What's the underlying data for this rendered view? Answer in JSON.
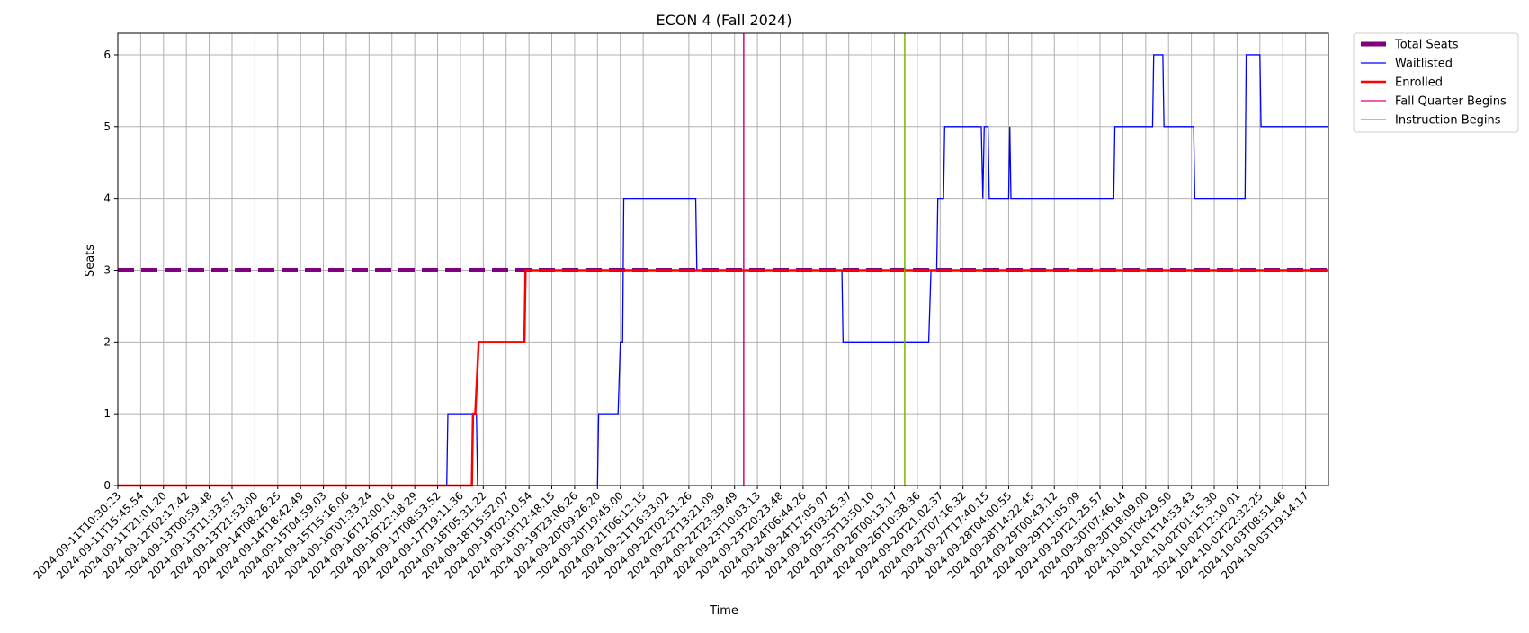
{
  "chart_data": {
    "type": "line",
    "title": "ECON 4 (Fall 2024)",
    "xlabel": "Time",
    "ylabel": "Seats",
    "ylim": [
      0,
      6.3
    ],
    "yticks": [
      0,
      1,
      2,
      3,
      4,
      5,
      6
    ],
    "grid": true,
    "legend_position": "outside-top-right",
    "x_ticks": [
      "2024-09-11T10:30:23",
      "2024-09-11T15:45:54",
      "2024-09-11T21:01:20",
      "2024-09-12T02:17:42",
      "2024-09-13T00:59:48",
      "2024-09-13T11:33:57",
      "2024-09-13T21:53:00",
      "2024-09-14T08:26:25",
      "2024-09-14T18:42:49",
      "2024-09-15T04:59:03",
      "2024-09-15T15:16:06",
      "2024-09-16T01:33:24",
      "2024-09-16T12:00:16",
      "2024-09-16T22:18:29",
      "2024-09-17T08:53:52",
      "2024-09-17T19:11:36",
      "2024-09-18T05:31:22",
      "2024-09-18T15:52:07",
      "2024-09-19T02:10:54",
      "2024-09-19T12:48:15",
      "2024-09-19T23:06:26",
      "2024-09-20T09:26:20",
      "2024-09-20T19:45:00",
      "2024-09-21T06:12:15",
      "2024-09-21T16:33:02",
      "2024-09-22T02:51:26",
      "2024-09-22T13:21:09",
      "2024-09-22T23:39:49",
      "2024-09-23T10:03:13",
      "2024-09-23T20:23:48",
      "2024-09-24T06:44:26",
      "2024-09-24T17:05:07",
      "2024-09-25T03:25:37",
      "2024-09-25T13:50:10",
      "2024-09-26T00:13:17",
      "2024-09-26T10:38:36",
      "2024-09-26T21:02:37",
      "2024-09-27T07:16:32",
      "2024-09-27T17:40:15",
      "2024-09-28T04:00:55",
      "2024-09-28T14:22:45",
      "2024-09-29T00:43:12",
      "2024-09-29T11:05:09",
      "2024-09-29T21:25:57",
      "2024-09-30T07:46:14",
      "2024-09-30T18:09:00",
      "2024-10-01T04:29:50",
      "2024-10-01T14:53:43",
      "2024-10-02T01:15:30",
      "2024-10-02T12:10:01",
      "2024-10-02T22:32:25",
      "2024-10-03T08:51:46",
      "2024-10-03T19:14:17"
    ],
    "series": [
      {
        "name": "Total Seats",
        "color": "#800080",
        "style": "dashed",
        "points": [
          [
            0,
            3
          ],
          [
            53,
            3
          ]
        ]
      },
      {
        "name": "Waitlisted",
        "color": "#0000ff",
        "style": "solid",
        "points": [
          [
            0,
            0
          ],
          [
            14.4,
            0
          ],
          [
            14.45,
            1
          ],
          [
            15.7,
            1
          ],
          [
            15.75,
            0
          ],
          [
            21.0,
            0
          ],
          [
            21.05,
            1
          ],
          [
            21.9,
            1
          ],
          [
            22.0,
            2
          ],
          [
            22.1,
            2
          ],
          [
            22.15,
            4
          ],
          [
            25.3,
            4
          ],
          [
            25.35,
            3
          ],
          [
            31.7,
            3
          ],
          [
            31.75,
            2
          ],
          [
            35.5,
            2
          ],
          [
            35.6,
            3
          ],
          [
            35.85,
            3
          ],
          [
            35.9,
            4
          ],
          [
            36.15,
            4
          ],
          [
            36.2,
            5
          ],
          [
            37.8,
            5
          ],
          [
            37.87,
            4
          ],
          [
            37.93,
            5
          ],
          [
            38.1,
            5
          ],
          [
            38.15,
            4
          ],
          [
            39.0,
            4
          ],
          [
            39.05,
            5
          ],
          [
            39.1,
            4
          ],
          [
            43.6,
            4
          ],
          [
            43.65,
            5
          ],
          [
            45.3,
            5
          ],
          [
            45.35,
            6
          ],
          [
            45.75,
            6
          ],
          [
            45.8,
            5
          ],
          [
            47.1,
            5
          ],
          [
            47.15,
            4
          ],
          [
            49.35,
            4
          ],
          [
            49.4,
            6
          ],
          [
            50.0,
            6
          ],
          [
            50.05,
            5
          ],
          [
            53,
            5
          ]
        ]
      },
      {
        "name": "Enrolled",
        "color": "#ff0000",
        "style": "solid",
        "points": [
          [
            0,
            0
          ],
          [
            15.5,
            0
          ],
          [
            15.55,
            1
          ],
          [
            15.65,
            1
          ],
          [
            15.8,
            2
          ],
          [
            17.8,
            2
          ],
          [
            17.85,
            3
          ],
          [
            53,
            3
          ]
        ]
      },
      {
        "name": "Fall Quarter Begins",
        "color": "#e00078",
        "style": "vline",
        "x": 27.4
      },
      {
        "name": "Instruction Begins",
        "color": "#7fb200",
        "style": "vline",
        "x": 34.45
      }
    ]
  }
}
